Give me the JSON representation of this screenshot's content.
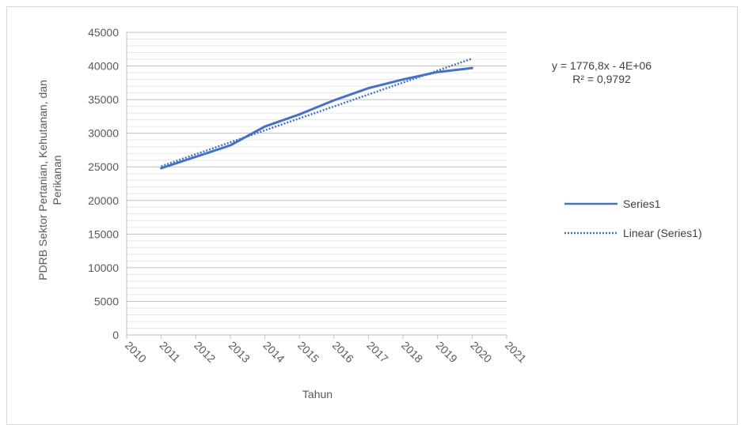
{
  "chart_data": {
    "type": "line",
    "title": "",
    "xlabel": "Tahun",
    "ylabel": "PDRB Sektor Pertanian, Kehutanan, dan Perikanan",
    "xlim": [
      2010,
      2021
    ],
    "ylim": [
      0,
      45000
    ],
    "x_ticks": [
      "2010",
      "2011",
      "2012",
      "2013",
      "2014",
      "2015",
      "2016",
      "2017",
      "2018",
      "2019",
      "2020",
      "2021"
    ],
    "y_ticks": [
      "0",
      "5000",
      "10000",
      "15000",
      "20000",
      "25000",
      "30000",
      "35000",
      "40000",
      "45000"
    ],
    "grid": "horizontal major and minor",
    "legend_position": "right",
    "series": [
      {
        "name": "Series1",
        "style": "solid",
        "color": "#4472C4",
        "x": [
          2011,
          2012,
          2013,
          2014,
          2015,
          2016,
          2017,
          2018,
          2019,
          2020
        ],
        "y": [
          24800,
          26500,
          28200,
          31000,
          32800,
          34900,
          36700,
          38000,
          39100,
          39700
        ]
      },
      {
        "name": "Linear (Series1)",
        "style": "dotted",
        "color": "#4472C4",
        "x": [
          2011,
          2020
        ],
        "y": [
          25100,
          41100
        ]
      }
    ],
    "annotations": {
      "equation": "y = 1776,8x - 4E+06",
      "r_squared": "R² = 0,9792"
    }
  }
}
